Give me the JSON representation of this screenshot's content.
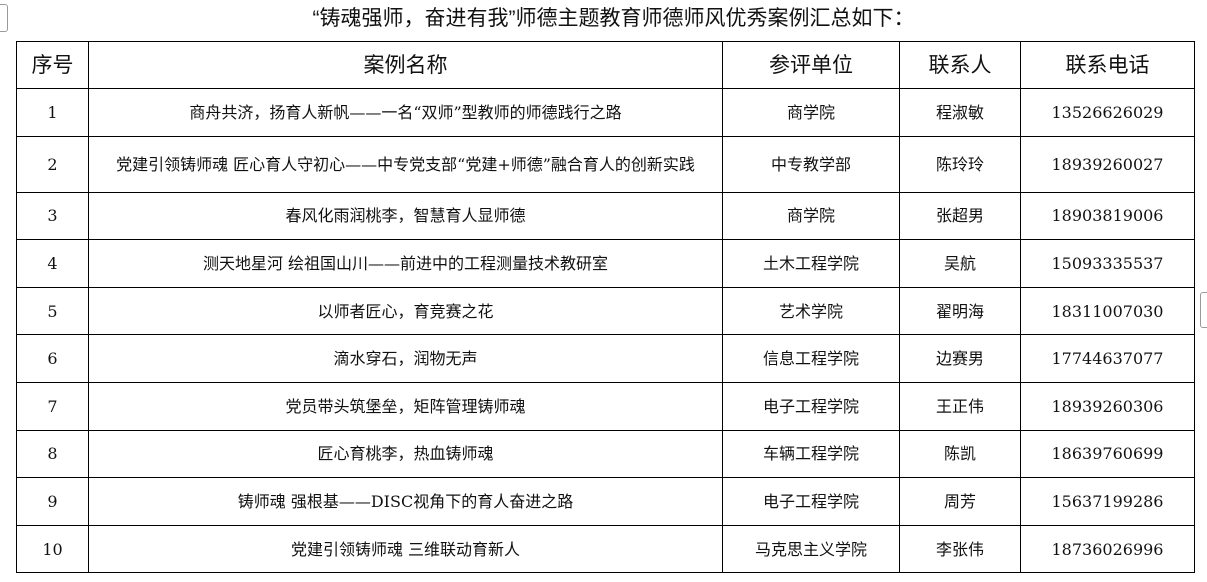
{
  "title": "“铸魂强师，奋进有我”师德主题教育师德师风优秀案例汇总如下：",
  "table": {
    "headers": [
      "序号",
      "案例名称",
      "参评单位",
      "联系人",
      "联系电话"
    ],
    "rows": [
      [
        "1",
        "商舟共济，扬育人新帆——一名“双师”型教师的师德践行之路",
        "商学院",
        "程淑敏",
        "13526626029"
      ],
      [
        "2",
        "党建引领铸师魂 匠心育人守初心——中专党支部“党建+师德”融合育人的创新实践",
        "中专教学部",
        "陈玲玲",
        "18939260027"
      ],
      [
        "3",
        "春风化雨润桃李，智慧育人显师德",
        "商学院",
        "张超男",
        "18903819006"
      ],
      [
        "4",
        "测天地星河 绘祖国山川——前进中的工程测量技术教研室",
        "土木工程学院",
        "吴航",
        "15093335537"
      ],
      [
        "5",
        "以师者匠心，育竞赛之花",
        "艺术学院",
        "翟明海",
        "18311007030"
      ],
      [
        "6",
        "滴水穿石，润物无声",
        "信息工程学院",
        "边赛男",
        "17744637077"
      ],
      [
        "7",
        "党员带头筑堡垒，矩阵管理铸师魂",
        "电子工程学院",
        "王正伟",
        "18939260306"
      ],
      [
        "8",
        "匠心育桃李，热血铸师魂",
        "车辆工程学院",
        "陈凯",
        "18639760699"
      ],
      [
        "9",
        "铸师魂 强根基——DISC视角下的育人奋进之路",
        "电子工程学院",
        "周芳",
        "15637199286"
      ],
      [
        "10",
        "党建引领铸师魂 三维联动育新人",
        "马克思主义学院",
        "李张伟",
        "18736026996"
      ]
    ]
  }
}
